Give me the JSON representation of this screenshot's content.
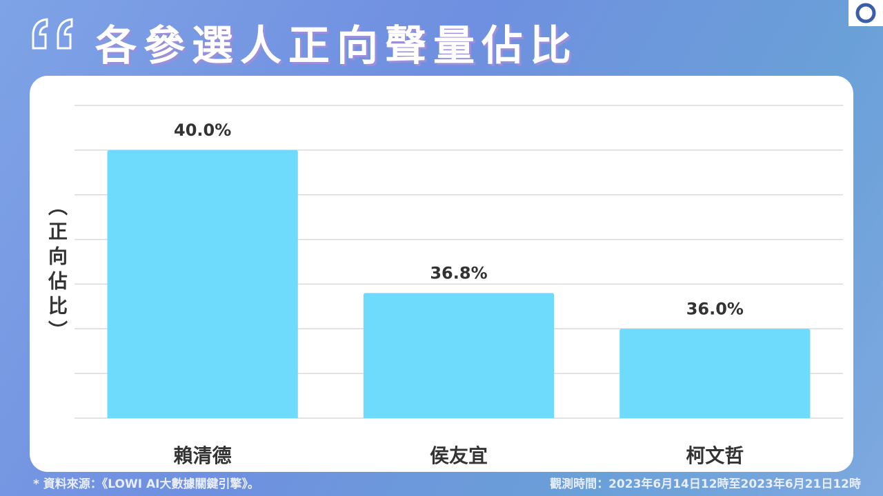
{
  "chart_data": {
    "type": "bar",
    "title": "各參選人正向聲量佔比",
    "y_label": "（正向佔比）",
    "categories": [
      "賴清德",
      "侯友宜",
      "柯文哲"
    ],
    "values": [
      40.0,
      36.8,
      36.0
    ],
    "value_labels": [
      "40.0%",
      "36.8%",
      "36.0%"
    ],
    "color": "#6edbfd",
    "ylim": [
      34,
      41
    ],
    "yticks": [
      34,
      35,
      36,
      37,
      38,
      39,
      40,
      41
    ],
    "grid": true
  },
  "footer": {
    "source": "* 資料來源：《LOWI AI大數據關鍵引擎》。",
    "period": "觀測時間：2023年6月14日12時至2023年6月21日12時"
  }
}
